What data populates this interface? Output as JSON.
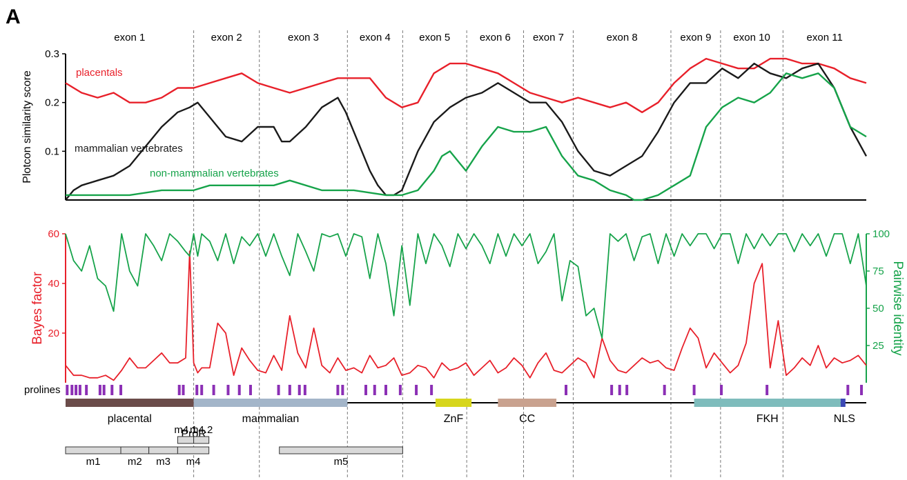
{
  "panel_label": "A",
  "chart_data": [
    {
      "type": "line",
      "ylabel": "Plotcon similarity score",
      "xlim": [
        0,
        1000
      ],
      "ylim": [
        0,
        0.3
      ],
      "yticks": [
        "0.1",
        "0.2",
        "0.3"
      ],
      "yticks_values": [
        0.1,
        0.2,
        0.3
      ],
      "exons": [
        {
          "label": "exon 1",
          "end": 160
        },
        {
          "label": "exon 2",
          "end": 242
        },
        {
          "label": "exon 3",
          "end": 352
        },
        {
          "label": "exon 4",
          "end": 421
        },
        {
          "label": "exon 5",
          "end": 501
        },
        {
          "label": "exon 6",
          "end": 572
        },
        {
          "label": "exon 7",
          "end": 634
        },
        {
          "label": "exon 8",
          "end": 756
        },
        {
          "label": "exon 9",
          "end": 818
        },
        {
          "label": "exon 10",
          "end": 896
        },
        {
          "label": "exon 11",
          "end": 1000
        }
      ],
      "series": [
        {
          "name": "placentals",
          "color": "#e8202a",
          "x": [
            0,
            20,
            40,
            60,
            80,
            100,
            120,
            140,
            160,
            180,
            200,
            220,
            240,
            260,
            280,
            300,
            320,
            340,
            360,
            380,
            400,
            420,
            440,
            460,
            470,
            480,
            500,
            520,
            540,
            560,
            580,
            600,
            620,
            640,
            660,
            680,
            700,
            720,
            740,
            760,
            780,
            800,
            820,
            840,
            860,
            880,
            900,
            920,
            940,
            960,
            980,
            1000
          ],
          "y": [
            0.24,
            0.22,
            0.21,
            0.22,
            0.2,
            0.2,
            0.21,
            0.23,
            0.23,
            0.24,
            0.25,
            0.26,
            0.24,
            0.23,
            0.22,
            0.23,
            0.24,
            0.25,
            0.25,
            0.25,
            0.21,
            0.19,
            0.2,
            0.26,
            0.27,
            0.28,
            0.28,
            0.27,
            0.26,
            0.24,
            0.22,
            0.21,
            0.2,
            0.21,
            0.2,
            0.19,
            0.2,
            0.18,
            0.2,
            0.24,
            0.27,
            0.29,
            0.28,
            0.27,
            0.27,
            0.29,
            0.29,
            0.28,
            0.28,
            0.27,
            0.25,
            0.24
          ]
        },
        {
          "name": "mammalian vertebrates",
          "color": "#1a1a1a",
          "x": [
            0,
            10,
            20,
            40,
            60,
            80,
            100,
            120,
            140,
            155,
            165,
            180,
            200,
            220,
            240,
            260,
            270,
            280,
            300,
            320,
            330,
            340,
            350,
            360,
            370,
            380,
            390,
            400,
            410,
            420,
            440,
            460,
            480,
            500,
            520,
            540,
            560,
            580,
            600,
            620,
            640,
            660,
            680,
            700,
            720,
            740,
            760,
            780,
            800,
            820,
            840,
            860,
            880,
            900,
            920,
            940,
            960,
            980,
            1000
          ],
          "y": [
            0.0,
            0.02,
            0.03,
            0.04,
            0.05,
            0.07,
            0.11,
            0.15,
            0.18,
            0.19,
            0.2,
            0.17,
            0.13,
            0.12,
            0.15,
            0.15,
            0.12,
            0.12,
            0.15,
            0.19,
            0.2,
            0.21,
            0.18,
            0.14,
            0.1,
            0.06,
            0.03,
            0.01,
            0.01,
            0.02,
            0.1,
            0.16,
            0.19,
            0.21,
            0.22,
            0.24,
            0.22,
            0.2,
            0.2,
            0.16,
            0.1,
            0.06,
            0.05,
            0.07,
            0.09,
            0.14,
            0.2,
            0.24,
            0.24,
            0.27,
            0.25,
            0.28,
            0.26,
            0.25,
            0.27,
            0.28,
            0.23,
            0.15,
            0.09
          ]
        },
        {
          "name": "non-mammalian vertebrates",
          "color": "#16a34a",
          "x": [
            0,
            40,
            80,
            120,
            160,
            180,
            200,
            240,
            260,
            280,
            320,
            360,
            400,
            420,
            440,
            460,
            470,
            480,
            490,
            500,
            520,
            540,
            560,
            580,
            600,
            620,
            640,
            660,
            680,
            700,
            710,
            720,
            740,
            760,
            780,
            800,
            820,
            840,
            860,
            880,
            900,
            920,
            940,
            960,
            980,
            1000
          ],
          "y": [
            0.01,
            0.01,
            0.01,
            0.02,
            0.02,
            0.03,
            0.03,
            0.03,
            0.03,
            0.04,
            0.02,
            0.02,
            0.01,
            0.01,
            0.02,
            0.06,
            0.09,
            0.1,
            0.08,
            0.06,
            0.11,
            0.15,
            0.14,
            0.14,
            0.15,
            0.09,
            0.05,
            0.04,
            0.02,
            0.01,
            0.0,
            0.0,
            0.01,
            0.03,
            0.05,
            0.15,
            0.19,
            0.21,
            0.2,
            0.22,
            0.26,
            0.25,
            0.26,
            0.23,
            0.15,
            0.13
          ]
        }
      ]
    },
    {
      "type": "line",
      "ylabel_left": "Bayes factor",
      "ylabel_right": "Pairwise identity",
      "xlim": [
        0,
        1000
      ],
      "ylim_left": [
        0,
        60
      ],
      "ylim_right": [
        0,
        100
      ],
      "yticks_left": [
        "20",
        "40",
        "60"
      ],
      "yticks_left_values": [
        20,
        40,
        60
      ],
      "yticks_right": [
        "25",
        "50",
        "75",
        "100"
      ],
      "yticks_right_values": [
        25,
        50,
        75,
        100
      ],
      "series": [
        {
          "name": "Bayes factor",
          "axis": "left",
          "color": "#e8202a",
          "x": [
            0,
            10,
            20,
            30,
            40,
            50,
            60,
            70,
            80,
            90,
            100,
            110,
            120,
            130,
            140,
            150,
            155,
            160,
            165,
            170,
            180,
            190,
            200,
            210,
            220,
            230,
            240,
            250,
            260,
            270,
            280,
            290,
            300,
            310,
            320,
            330,
            340,
            350,
            360,
            370,
            380,
            390,
            400,
            410,
            420,
            430,
            440,
            450,
            460,
            470,
            480,
            490,
            500,
            510,
            520,
            530,
            540,
            550,
            560,
            570,
            580,
            590,
            600,
            610,
            620,
            630,
            640,
            650,
            660,
            670,
            680,
            690,
            700,
            710,
            720,
            730,
            740,
            750,
            760,
            770,
            780,
            790,
            800,
            810,
            820,
            830,
            840,
            850,
            860,
            870,
            880,
            890,
            900,
            910,
            920,
            930,
            940,
            950,
            960,
            970,
            980,
            990,
            1000
          ],
          "y": [
            7,
            3,
            3,
            2,
            2,
            3,
            1,
            5,
            10,
            6,
            6,
            9,
            12,
            8,
            8,
            10,
            53,
            8,
            4,
            6,
            6,
            24,
            20,
            3,
            14,
            9,
            5,
            4,
            11,
            5,
            27,
            12,
            6,
            22,
            7,
            4,
            10,
            5,
            6,
            4,
            11,
            6,
            7,
            10,
            3,
            4,
            7,
            6,
            2,
            8,
            5,
            6,
            8,
            3,
            6,
            9,
            4,
            6,
            10,
            7,
            2,
            8,
            12,
            5,
            4,
            7,
            10,
            8,
            2,
            18,
            9,
            5,
            4,
            7,
            10,
            8,
            9,
            6,
            5,
            14,
            22,
            18,
            6,
            12,
            8,
            4,
            7,
            16,
            40,
            48,
            6,
            25,
            3,
            6,
            10,
            7,
            15,
            6,
            10,
            8,
            9,
            11,
            7
          ]
        },
        {
          "name": "Pairwise identity",
          "axis": "right",
          "color": "#16a34a",
          "x": [
            0,
            10,
            20,
            30,
            40,
            50,
            60,
            70,
            80,
            90,
            100,
            110,
            120,
            130,
            140,
            150,
            155,
            160,
            165,
            170,
            180,
            190,
            200,
            210,
            220,
            230,
            240,
            250,
            260,
            270,
            280,
            290,
            300,
            310,
            320,
            330,
            340,
            350,
            360,
            370,
            380,
            390,
            400,
            410,
            420,
            430,
            440,
            450,
            460,
            470,
            480,
            490,
            500,
            510,
            520,
            530,
            540,
            550,
            560,
            570,
            580,
            590,
            600,
            610,
            620,
            630,
            640,
            650,
            660,
            670,
            680,
            690,
            700,
            710,
            720,
            730,
            740,
            750,
            760,
            770,
            780,
            790,
            800,
            810,
            820,
            830,
            840,
            850,
            860,
            870,
            880,
            890,
            900,
            910,
            920,
            930,
            940,
            950,
            960,
            970,
            980,
            990,
            1000
          ],
          "y": [
            100,
            82,
            75,
            92,
            70,
            65,
            48,
            100,
            75,
            65,
            100,
            92,
            82,
            100,
            95,
            88,
            85,
            100,
            85,
            100,
            95,
            82,
            100,
            80,
            98,
            92,
            100,
            85,
            100,
            85,
            72,
            100,
            88,
            75,
            100,
            98,
            100,
            85,
            100,
            98,
            70,
            100,
            80,
            45,
            92,
            52,
            100,
            80,
            100,
            92,
            78,
            100,
            90,
            100,
            92,
            80,
            100,
            85,
            100,
            92,
            100,
            80,
            88,
            100,
            55,
            82,
            78,
            45,
            50,
            30,
            100,
            95,
            100,
            82,
            98,
            100,
            80,
            100,
            85,
            100,
            92,
            100,
            100,
            90,
            100,
            100,
            80,
            100,
            90,
            100,
            92,
            100,
            100,
            88,
            100,
            92,
            100,
            85,
            100,
            100,
            80,
            100,
            65
          ]
        }
      ]
    }
  ],
  "prolines": {
    "label": "prolines",
    "color": "#8b2fb5",
    "positions": [
      2,
      8,
      13,
      18,
      26,
      43,
      48,
      58,
      69,
      142,
      147,
      164,
      170,
      185,
      203,
      217,
      231,
      266,
      280,
      292,
      299,
      340,
      346,
      375,
      386,
      400,
      418,
      438,
      457,
      625,
      682,
      692,
      701,
      748,
      785,
      819,
      876,
      977,
      994
    ]
  },
  "domains": [
    {
      "label": "placental",
      "start": 0,
      "end": 160,
      "color": "#6b4c4a"
    },
    {
      "label": "mammalian",
      "start": 160,
      "end": 352,
      "color": "#a3b5c9"
    },
    {
      "label": "ZnF",
      "start": 462,
      "end": 507,
      "color": "#d7d61c"
    },
    {
      "label": "CC",
      "start": 540,
      "end": 613,
      "color": "#c9a28f"
    },
    {
      "label": "FKH",
      "start": 785,
      "end": 968,
      "color": "#7ebcbc"
    },
    {
      "label": "NLS",
      "start": 968,
      "end": 974,
      "color": "#3c49b5"
    }
  ],
  "domain_extra_label": "ProR",
  "motifs": [
    {
      "label": "m1",
      "start": 0,
      "end": 69
    },
    {
      "label": "m2",
      "start": 69,
      "end": 104
    },
    {
      "label": "m3",
      "start": 104,
      "end": 140
    },
    {
      "label": "m4",
      "start": 140,
      "end": 179
    },
    {
      "label": "m4.1",
      "start": 140,
      "end": 160
    },
    {
      "label": "m4.2",
      "start": 160,
      "end": 179
    },
    {
      "label": "m5",
      "start": 267,
      "end": 421
    }
  ]
}
